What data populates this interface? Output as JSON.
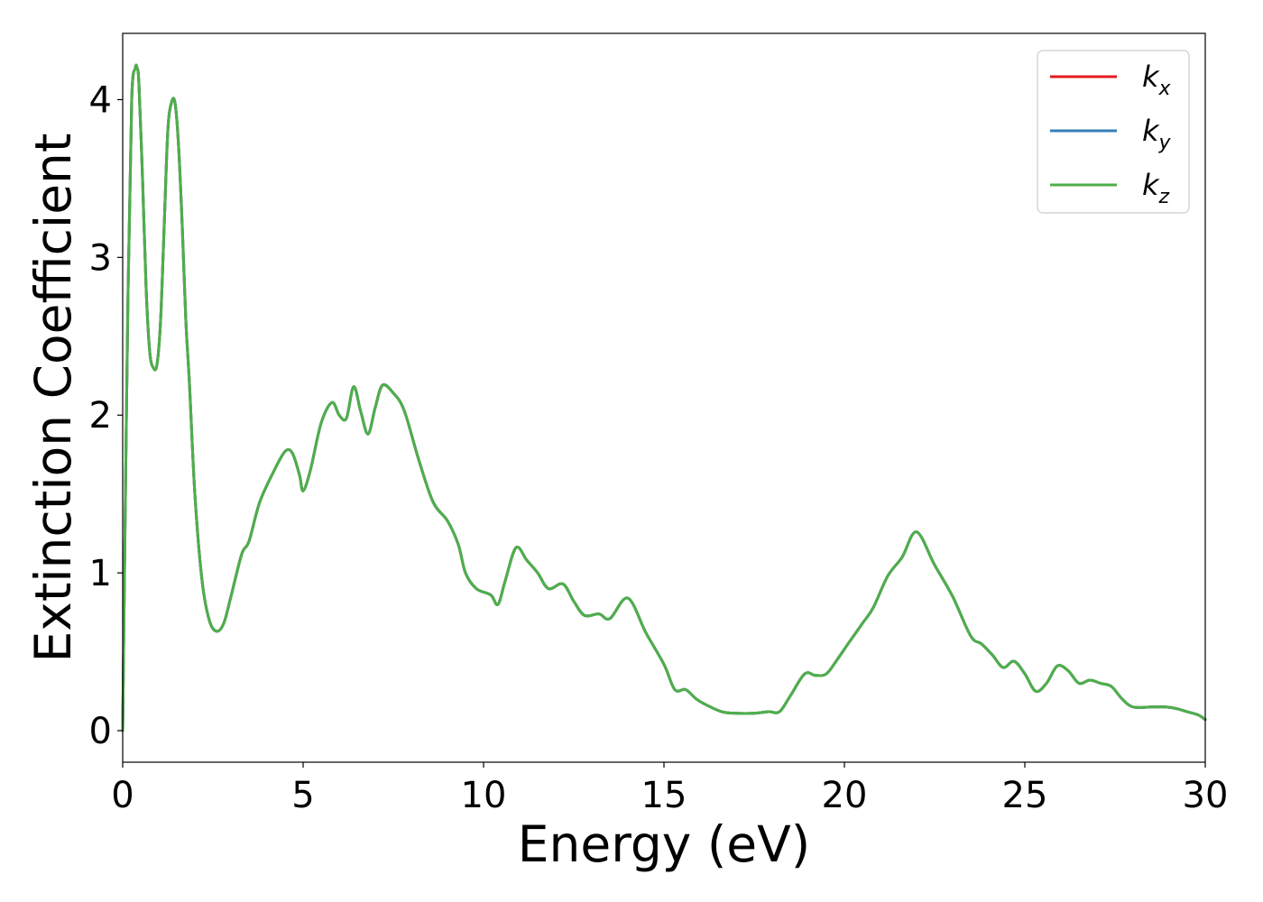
{
  "chart_data": {
    "type": "line",
    "title": "",
    "xlabel": "Energy (eV)",
    "ylabel": "Extinction Coefficient",
    "xlim": [
      0,
      30
    ],
    "ylim": [
      -0.2,
      4.42
    ],
    "xticks": [
      0,
      5,
      10,
      15,
      20,
      25,
      30
    ],
    "xtick_labels": [
      "0",
      "5",
      "10",
      "15",
      "20",
      "25",
      "30"
    ],
    "yticks": [
      0,
      1,
      2,
      3,
      4
    ],
    "ytick_labels": [
      "0",
      "1",
      "2",
      "3",
      "4"
    ],
    "grid": false,
    "legend_position": "top-right",
    "x": [
      0,
      0.05,
      0.15,
      0.25,
      0.35,
      0.4,
      0.45,
      0.55,
      0.65,
      0.75,
      0.85,
      0.95,
      1.05,
      1.15,
      1.25,
      1.35,
      1.45,
      1.55,
      1.65,
      1.75,
      1.85,
      2.0,
      2.2,
      2.4,
      2.6,
      2.8,
      3.0,
      3.3,
      3.5,
      3.8,
      4.2,
      4.5,
      4.7,
      4.9,
      5.0,
      5.2,
      5.5,
      5.8,
      6.0,
      6.2,
      6.4,
      6.6,
      6.8,
      7.0,
      7.2,
      7.5,
      7.8,
      8.2,
      8.6,
      9.0,
      9.3,
      9.5,
      9.8,
      10.2,
      10.4,
      10.6,
      10.9,
      11.2,
      11.5,
      11.8,
      12.2,
      12.5,
      12.8,
      13.2,
      13.5,
      14.0,
      14.5,
      15.0,
      15.3,
      15.6,
      15.9,
      16.2,
      16.6,
      17.0,
      17.5,
      17.9,
      18.2,
      18.5,
      18.9,
      19.2,
      19.5,
      19.8,
      20.1,
      20.5,
      20.8,
      21.2,
      21.6,
      22.0,
      22.5,
      23.0,
      23.5,
      23.8,
      24.1,
      24.4,
      24.7,
      25.0,
      25.3,
      25.6,
      25.9,
      26.2,
      26.5,
      26.8,
      27.1,
      27.4,
      27.7,
      28.0,
      28.5,
      28.9,
      29.2,
      29.5,
      29.8,
      30.0
    ],
    "series": [
      {
        "name": "k_x",
        "label_main": "k",
        "label_sub": "x",
        "color": "#e41a1c",
        "values": [
          0.0,
          1.0,
          2.8,
          4.0,
          4.2,
          4.2,
          4.1,
          3.5,
          2.8,
          2.4,
          2.3,
          2.32,
          2.6,
          3.2,
          3.8,
          3.98,
          3.98,
          3.7,
          3.2,
          2.6,
          2.2,
          1.5,
          0.95,
          0.7,
          0.63,
          0.68,
          0.85,
          1.12,
          1.2,
          1.45,
          1.65,
          1.77,
          1.76,
          1.62,
          1.52,
          1.65,
          1.95,
          2.08,
          2.0,
          1.98,
          2.18,
          2.02,
          1.88,
          2.05,
          2.19,
          2.14,
          2.03,
          1.72,
          1.45,
          1.33,
          1.18,
          1.0,
          0.9,
          0.86,
          0.8,
          0.95,
          1.16,
          1.08,
          1.0,
          0.9,
          0.93,
          0.82,
          0.73,
          0.74,
          0.71,
          0.84,
          0.62,
          0.42,
          0.26,
          0.26,
          0.2,
          0.16,
          0.12,
          0.11,
          0.11,
          0.12,
          0.12,
          0.22,
          0.36,
          0.35,
          0.36,
          0.45,
          0.55,
          0.68,
          0.78,
          0.98,
          1.1,
          1.26,
          1.05,
          0.85,
          0.6,
          0.55,
          0.48,
          0.4,
          0.44,
          0.36,
          0.25,
          0.3,
          0.41,
          0.38,
          0.3,
          0.32,
          0.3,
          0.28,
          0.2,
          0.15,
          0.15,
          0.15,
          0.14,
          0.12,
          0.1,
          0.07
        ]
      },
      {
        "name": "k_y",
        "label_main": "k",
        "label_sub": "y",
        "color": "#377eb8",
        "values": [
          0.0,
          1.0,
          2.8,
          4.0,
          4.2,
          4.2,
          4.1,
          3.5,
          2.8,
          2.4,
          2.3,
          2.32,
          2.6,
          3.2,
          3.8,
          3.98,
          3.98,
          3.7,
          3.2,
          2.6,
          2.2,
          1.5,
          0.95,
          0.7,
          0.63,
          0.68,
          0.85,
          1.12,
          1.2,
          1.45,
          1.65,
          1.77,
          1.76,
          1.62,
          1.52,
          1.65,
          1.95,
          2.08,
          2.0,
          1.98,
          2.18,
          2.02,
          1.88,
          2.05,
          2.19,
          2.14,
          2.03,
          1.72,
          1.45,
          1.33,
          1.18,
          1.0,
          0.9,
          0.86,
          0.8,
          0.95,
          1.16,
          1.08,
          1.0,
          0.9,
          0.93,
          0.82,
          0.73,
          0.74,
          0.71,
          0.84,
          0.62,
          0.42,
          0.26,
          0.26,
          0.2,
          0.16,
          0.12,
          0.11,
          0.11,
          0.12,
          0.12,
          0.22,
          0.36,
          0.35,
          0.36,
          0.45,
          0.55,
          0.68,
          0.78,
          0.98,
          1.1,
          1.26,
          1.05,
          0.85,
          0.6,
          0.55,
          0.48,
          0.4,
          0.44,
          0.36,
          0.25,
          0.3,
          0.41,
          0.38,
          0.3,
          0.32,
          0.3,
          0.28,
          0.2,
          0.15,
          0.15,
          0.15,
          0.14,
          0.12,
          0.1,
          0.07
        ]
      },
      {
        "name": "k_z",
        "label_main": "k",
        "label_sub": "z",
        "color": "#4daf4a",
        "values": [
          0.0,
          1.0,
          2.8,
          4.0,
          4.2,
          4.2,
          4.1,
          3.5,
          2.8,
          2.4,
          2.3,
          2.32,
          2.6,
          3.2,
          3.8,
          3.98,
          3.98,
          3.7,
          3.2,
          2.6,
          2.2,
          1.5,
          0.95,
          0.7,
          0.63,
          0.68,
          0.85,
          1.12,
          1.2,
          1.45,
          1.65,
          1.77,
          1.76,
          1.62,
          1.52,
          1.65,
          1.95,
          2.08,
          2.0,
          1.98,
          2.18,
          2.02,
          1.88,
          2.05,
          2.19,
          2.14,
          2.03,
          1.72,
          1.45,
          1.33,
          1.18,
          1.0,
          0.9,
          0.86,
          0.8,
          0.95,
          1.16,
          1.08,
          1.0,
          0.9,
          0.93,
          0.82,
          0.73,
          0.74,
          0.71,
          0.84,
          0.62,
          0.42,
          0.26,
          0.26,
          0.2,
          0.16,
          0.12,
          0.11,
          0.11,
          0.12,
          0.12,
          0.22,
          0.36,
          0.35,
          0.36,
          0.45,
          0.55,
          0.68,
          0.78,
          0.98,
          1.1,
          1.26,
          1.05,
          0.85,
          0.6,
          0.55,
          0.48,
          0.4,
          0.44,
          0.36,
          0.25,
          0.3,
          0.41,
          0.38,
          0.3,
          0.32,
          0.3,
          0.28,
          0.2,
          0.15,
          0.15,
          0.15,
          0.14,
          0.12,
          0.1,
          0.07
        ]
      }
    ]
  }
}
